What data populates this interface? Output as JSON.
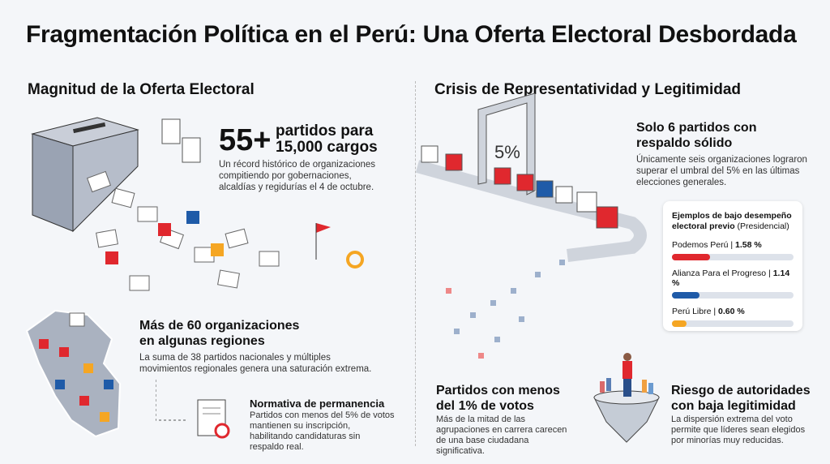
{
  "title": "Fragmentación Política en el Perú: Una Oferta Electoral Desbordada",
  "left": {
    "section_title": "Magnitud de la Oferta Electoral",
    "big_number": "55+",
    "big_line1": "partidos para",
    "big_line2": "15,000 cargos",
    "big_desc": "Un récord histórico de organizaciones compitiendo por gobernaciones, alcaldías y regidurías el 4 de octubre.",
    "regions_title": "Más de 60 organizaciones en algunas regiones",
    "regions_desc": "La suma de 38 partidos nacionales y múltiples movimientos regionales genera una saturación extrema.",
    "norm_title": "Normativa de permanencia",
    "norm_desc": "Partidos con menos del 5% de votos mantienen su inscripción, habilitando candidaturas sin respaldo real."
  },
  "right": {
    "section_title": "Crisis de Representatividad y Legitimidad",
    "gate_label": "5%",
    "solid_title": "Solo 6 partidos con respaldo sólido",
    "solid_desc": "Únicamente seis organizaciones lograron superar el umbral del 5% en las últimas elecciones generales.",
    "card": {
      "title_bold": "Ejemplos de bajo desempeño electoral previo",
      "title_rest": " (Presidencial)",
      "items": [
        {
          "name": "Podemos Perú",
          "value": 1.58,
          "label": "1.58 %",
          "color": "#e0282e"
        },
        {
          "name": "Alianza Para el Progreso",
          "value": 1.14,
          "label": "1.14 %",
          "color": "#1f5ba8"
        },
        {
          "name": "Perú Libre",
          "value": 0.6,
          "label": "0.60 %",
          "color": "#f5a623"
        }
      ]
    },
    "low_title": "Partidos con menos del 1% de votos",
    "low_desc": "Más de la mitad de las agrupaciones en carrera carecen de una base ciudadana significativa.",
    "risk_title": "Riesgo de autoridades con baja legitimidad",
    "risk_desc": "La dispersión extrema del voto permite que líderes sean elegidos por minorías muy reducidas."
  }
}
